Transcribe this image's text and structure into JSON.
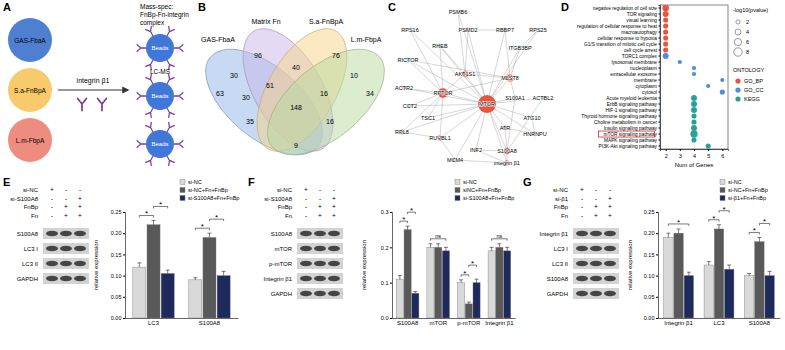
{
  "panel_labels": [
    "A",
    "B",
    "C",
    "D",
    "E",
    "F",
    "G"
  ],
  "diagram_a": {
    "proteins": [
      {
        "label": "GAS-FbaA",
        "color": "#4f7fd0"
      },
      {
        "label": "S.a-FnBpA",
        "color": "#f8ca6c"
      },
      {
        "label": "L.m-FbpA",
        "color": "#ee8c80"
      }
    ],
    "receptor": "integrin β1",
    "bead_label": "Beads",
    "mass_spec": [
      "Mass-spec:",
      "FnBp-Fn-integrin",
      "complex"
    ],
    "method": "LC-MS"
  },
  "venn_b": {
    "sets": [
      {
        "label": "GAS-FbaA",
        "color": "#8fb4e8"
      },
      {
        "label": "Matrix Fn",
        "color": "#c9b6e8"
      },
      {
        "label": "S.a-FnBpA",
        "color": "#f5d488"
      },
      {
        "label": "L.m-FbpA",
        "color": "#b7d9a0"
      }
    ],
    "regions": [
      63,
      96,
      30,
      40,
      76,
      10,
      34,
      30,
      61,
      148,
      16,
      35,
      16,
      9
    ]
  },
  "network_c": {
    "nodes": [
      {
        "label": "PSMB6",
        "color": "#e8553e"
      },
      {
        "label": "RPS16",
        "color": "#e8553e"
      },
      {
        "label": "PSMD2",
        "color": "#e8553e"
      },
      {
        "label": "RBBP7",
        "color": "#e8553e"
      },
      {
        "label": "RPS25",
        "color": "#e8553e"
      },
      {
        "label": "RHEB",
        "color": "#5aa7e0"
      },
      {
        "label": "ITGB3BP",
        "color": "#5aa7e0"
      },
      {
        "label": "RICTOR",
        "color": "#5aa7e0"
      },
      {
        "label": "AKT1S1",
        "color": "#e8553e"
      },
      {
        "label": "MLST8",
        "color": "#e8553e"
      },
      {
        "label": "S100A1",
        "color": "#5aa7e0"
      },
      {
        "label": "ACTBL2",
        "color": "#5aa7e0"
      },
      {
        "label": "ACTR2",
        "color": "#e8553e"
      },
      {
        "label": "RPTOR",
        "color": "#e8553e"
      },
      {
        "label": "MTOR",
        "color": "#e8553e"
      },
      {
        "label": "CCT2",
        "color": "#5aa7e0"
      },
      {
        "label": "TSC1",
        "color": "#5aa7e0"
      },
      {
        "label": "ATG10",
        "color": "#5aa7e0"
      },
      {
        "label": "RPL8",
        "color": "#e8553e"
      },
      {
        "label": "RUVBL1",
        "color": "#e8553e"
      },
      {
        "label": "ATR",
        "color": "#e8553e"
      },
      {
        "label": "HNRNPU",
        "color": "#e8553e"
      },
      {
        "label": "INF2",
        "color": "#e8553e"
      },
      {
        "label": "S100A8",
        "color": "#e8553e"
      },
      {
        "label": "MCM4",
        "color": "#e8553e"
      },
      {
        "label": "integrin β1",
        "color": "#e8553e"
      }
    ],
    "edges": [
      [
        14,
        0
      ],
      [
        14,
        1
      ],
      [
        14,
        2
      ],
      [
        14,
        3
      ],
      [
        14,
        4
      ],
      [
        14,
        5
      ],
      [
        14,
        6
      ],
      [
        14,
        7
      ],
      [
        14,
        8
      ],
      [
        14,
        9
      ],
      [
        14,
        10
      ],
      [
        14,
        11
      ],
      [
        14,
        12
      ],
      [
        14,
        13
      ],
      [
        14,
        15
      ],
      [
        14,
        16
      ],
      [
        14,
        17
      ],
      [
        14,
        18
      ],
      [
        14,
        19
      ],
      [
        14,
        20
      ],
      [
        14,
        21
      ],
      [
        14,
        22
      ],
      [
        14,
        23
      ],
      [
        14,
        24
      ],
      [
        14,
        25
      ],
      [
        13,
        1
      ],
      [
        13,
        5
      ],
      [
        13,
        7
      ],
      [
        13,
        8
      ],
      [
        13,
        9
      ],
      [
        13,
        12
      ],
      [
        13,
        15
      ],
      [
        13,
        16
      ],
      [
        13,
        18
      ],
      [
        13,
        19
      ],
      [
        9,
        7
      ],
      [
        9,
        8
      ],
      [
        9,
        6
      ],
      [
        9,
        3
      ],
      [
        9,
        10
      ],
      [
        8,
        2
      ],
      [
        8,
        0
      ],
      [
        8,
        5
      ],
      [
        23,
        25
      ],
      [
        23,
        20
      ],
      [
        23,
        22
      ],
      [
        23,
        11
      ],
      [
        23,
        10
      ],
      [
        25,
        24
      ],
      [
        25,
        22
      ],
      [
        19,
        18
      ],
      [
        19,
        24
      ],
      [
        4,
        6
      ],
      [
        3,
        2
      ],
      [
        17,
        21
      ],
      [
        20,
        21
      ]
    ]
  },
  "chart_data": [
    {
      "type": "scatter",
      "x_label": "Num of Genes",
      "categories": [
        "negative regulation of cell size",
        "TOR signaling",
        "visual learning",
        "regulation of cellular response to heat",
        "macroautophagy",
        "cellular response to hypoxia",
        "G1/S transition of mitotic cell cycle",
        "cell cycle arrest",
        "TORC1 complex",
        "lysosomal membrane",
        "nucleoplasm",
        "extracellular exosome",
        "membrane",
        "cytoplasm",
        "cytosol",
        "Acute myeloid leukemia",
        "ErbB signaling pathway",
        "HIF-1 signaling pathway",
        "Thyroid hormone signaling pathway",
        "Choline metabolism in cancer",
        "Insulin signaling pathway",
        "mTOR signaling pathway",
        "MAPK signaling pathway",
        "PI3K-Akt signaling pathway"
      ],
      "xlim": [
        1.6,
        6.4
      ],
      "xticks": [
        2,
        3,
        4,
        5,
        6
      ],
      "size_label": "-log10(pvalue)",
      "size_ticks": [
        2,
        4,
        6,
        8
      ],
      "legend_title": "ONTOLOGY",
      "series": [
        {
          "name": "GO_BP",
          "color": "#e8553e",
          "values": [
            2,
            2,
            2,
            2,
            2,
            2,
            2,
            2,
            null,
            null,
            null,
            null,
            null,
            null,
            null,
            null,
            null,
            null,
            null,
            null,
            null,
            null,
            null,
            null
          ],
          "sizes": [
            5,
            4,
            3,
            3,
            3,
            3,
            3,
            3,
            null,
            null,
            null,
            null,
            null,
            null,
            null,
            null,
            null,
            null,
            null,
            null,
            null,
            null,
            null,
            null
          ]
        },
        {
          "name": "GO_CC",
          "color": "#4a8fd8",
          "values": [
            null,
            null,
            null,
            null,
            null,
            null,
            null,
            null,
            2,
            3,
            4,
            4,
            6,
            5,
            6,
            null,
            null,
            null,
            null,
            null,
            null,
            null,
            null,
            null
          ],
          "sizes": [
            null,
            null,
            null,
            null,
            null,
            null,
            null,
            null,
            4,
            2,
            2,
            2,
            2,
            2,
            3,
            null,
            null,
            null,
            null,
            null,
            null,
            null,
            null,
            null
          ]
        },
        {
          "name": "KEGG",
          "color": "#2aa198",
          "values": [
            null,
            null,
            null,
            null,
            null,
            null,
            null,
            null,
            null,
            null,
            null,
            null,
            null,
            null,
            null,
            4,
            4,
            4,
            4,
            4,
            4,
            4,
            4,
            5
          ],
          "sizes": [
            null,
            null,
            null,
            null,
            null,
            null,
            null,
            null,
            null,
            null,
            null,
            null,
            null,
            null,
            null,
            4,
            4,
            4,
            3,
            3,
            4,
            6,
            3,
            3
          ]
        }
      ]
    },
    {
      "type": "bar",
      "y_label": "relative expression",
      "categories": [
        "LC3",
        "S100A8"
      ],
      "ylim": [
        0,
        0.25
      ],
      "yticks": [
        {
          "value": 0,
          "label": "0.00"
        },
        0.05,
        {
          "value": 0.1,
          "label": "0.10"
        },
        0.15,
        {
          "value": 0.2,
          "label": "0.20"
        },
        0.25
      ],
      "legend": "top-right",
      "series": [
        {
          "name": "si-NC",
          "color": "#d9d9d9",
          "values": [
            0.12,
            0.09
          ],
          "errors": [
            0.01,
            0.005
          ]
        },
        {
          "name": "si-NC+Fn+FnBp",
          "color": "#595959",
          "values": [
            0.22,
            0.19
          ],
          "errors": [
            0.01,
            0.01
          ]
        },
        {
          "name": "si-S100A8+Fn+FnBp",
          "color": "#1f2a5c",
          "values": [
            0.105,
            0.1
          ],
          "errors": [
            0.008,
            0.01
          ]
        }
      ],
      "annotations": [
        {
          "text": "*",
          "category": 0,
          "from": 0,
          "to": 1
        },
        {
          "text": "*",
          "category": 0,
          "from": 1,
          "to": 2
        },
        {
          "text": "*",
          "category": 1,
          "from": 0,
          "to": 1
        },
        {
          "text": "*",
          "category": 1,
          "from": 1,
          "to": 2
        }
      ]
    },
    {
      "type": "bar",
      "y_label": "relative expression",
      "categories": [
        "S100A8",
        "mTOR",
        "p-mTOR",
        "Integrin β1"
      ],
      "ylim": [
        0,
        0.3
      ],
      "yticks": [
        {
          "value": 0,
          "label": "0.0"
        },
        0.1,
        0.2,
        0.3
      ],
      "legend": "top-right",
      "series": [
        {
          "name": "si-NC",
          "color": "#d9d9d9",
          "values": [
            0.11,
            0.2,
            0.1,
            0.19
          ],
          "errors": [
            0.01,
            0.01,
            0.008,
            0.01
          ]
        },
        {
          "name": "siNC+Fn+FnBp",
          "color": "#595959",
          "values": [
            0.25,
            0.2,
            0.04,
            0.2
          ],
          "errors": [
            0.01,
            0.01,
            0.005,
            0.01
          ]
        },
        {
          "name": "si-S100A8+Fn+FnBp",
          "color": "#1f2a5c",
          "values": [
            0.07,
            0.19,
            0.1,
            0.19
          ],
          "errors": [
            0.005,
            0.01,
            0.01,
            0.01
          ]
        }
      ],
      "annotations": [
        {
          "text": "*",
          "category": 0,
          "from": 0,
          "to": 1
        },
        {
          "text": "*",
          "category": 0,
          "from": 1,
          "to": 2
        },
        {
          "text": "ns",
          "category": 1,
          "from": 0,
          "to": 2
        },
        {
          "text": "*",
          "category": 2,
          "from": 0,
          "to": 1
        },
        {
          "text": "*",
          "category": 2,
          "from": 1,
          "to": 2
        },
        {
          "text": "ns",
          "category": 3,
          "from": 0,
          "to": 2
        }
      ]
    },
    {
      "type": "bar",
      "y_label": "relative expression",
      "categories": [
        "Integrin β1",
        "LC3",
        "S100A8"
      ],
      "ylim": [
        0,
        0.25
      ],
      "yticks": [
        {
          "value": 0,
          "label": "0.00"
        },
        0.05,
        {
          "value": 0.1,
          "label": "0.10"
        },
        0.15,
        {
          "value": 0.2,
          "label": "0.20"
        },
        0.25
      ],
      "legend": "top-right",
      "series": [
        {
          "name": "si-NC",
          "color": "#d9d9d9",
          "values": [
            0.19,
            0.125,
            0.1
          ],
          "errors": [
            0.01,
            0.008,
            0.005
          ]
        },
        {
          "name": "si-NC+Fn+FnBp",
          "color": "#595959",
          "values": [
            0.2,
            0.21,
            0.18
          ],
          "errors": [
            0.01,
            0.01,
            0.01
          ]
        },
        {
          "name": "si-β1+Fn+FnBp",
          "color": "#1f2a5c",
          "values": [
            0.1,
            0.115,
            0.1
          ],
          "errors": [
            0.008,
            0.01,
            0.01
          ]
        }
      ],
      "annotations": [
        {
          "text": "*",
          "category": 0,
          "from": 0,
          "to": 2
        },
        {
          "text": "*",
          "category": 1,
          "from": 0,
          "to": 1
        },
        {
          "text": "*",
          "category": 1,
          "from": 1,
          "to": 2
        },
        {
          "text": "*",
          "category": 2,
          "from": 0,
          "to": 1
        },
        {
          "text": "*",
          "category": 2,
          "from": 1,
          "to": 2
        }
      ]
    }
  ],
  "blots": [
    {
      "conditions": [
        {
          "label": "si-NC",
          "signs": [
            "+",
            "-",
            "-"
          ]
        },
        {
          "label": "si-S100A8",
          "signs": [
            "-",
            "-",
            "+"
          ]
        },
        {
          "label": "FnBp",
          "signs": [
            "-",
            "+",
            "+"
          ]
        },
        {
          "label": "Fn",
          "signs": [
            "-",
            "+",
            "+"
          ]
        }
      ],
      "bands": [
        "S100A8",
        "LC3 I",
        "LC3 II",
        "GAPDH"
      ]
    },
    {
      "conditions": [
        {
          "label": "si-NC",
          "signs": [
            "+",
            "-",
            "-"
          ]
        },
        {
          "label": "si-S100A8",
          "signs": [
            "-",
            "-",
            "+"
          ]
        },
        {
          "label": "FnBp",
          "signs": [
            "-",
            "+",
            "+"
          ]
        },
        {
          "label": "Fn",
          "signs": [
            "-",
            "+",
            "+"
          ]
        }
      ],
      "bands": [
        "S100A8",
        "mTOR",
        "p-mTOR",
        "Integrin β1",
        "GAPDH"
      ]
    },
    {
      "conditions": [
        {
          "label": "si-NC",
          "signs": [
            "+",
            "-",
            "-"
          ]
        },
        {
          "label": "si-β1",
          "signs": [
            "-",
            "-",
            "+"
          ]
        },
        {
          "label": "FnBp",
          "signs": [
            "-",
            "+",
            "+"
          ]
        },
        {
          "label": "Fn",
          "signs": [
            "-",
            "+",
            "+"
          ]
        }
      ],
      "bands": [
        "Integrin β1",
        "LC3 I",
        "LC3 II",
        "S100A8",
        "GAPDH"
      ]
    }
  ]
}
